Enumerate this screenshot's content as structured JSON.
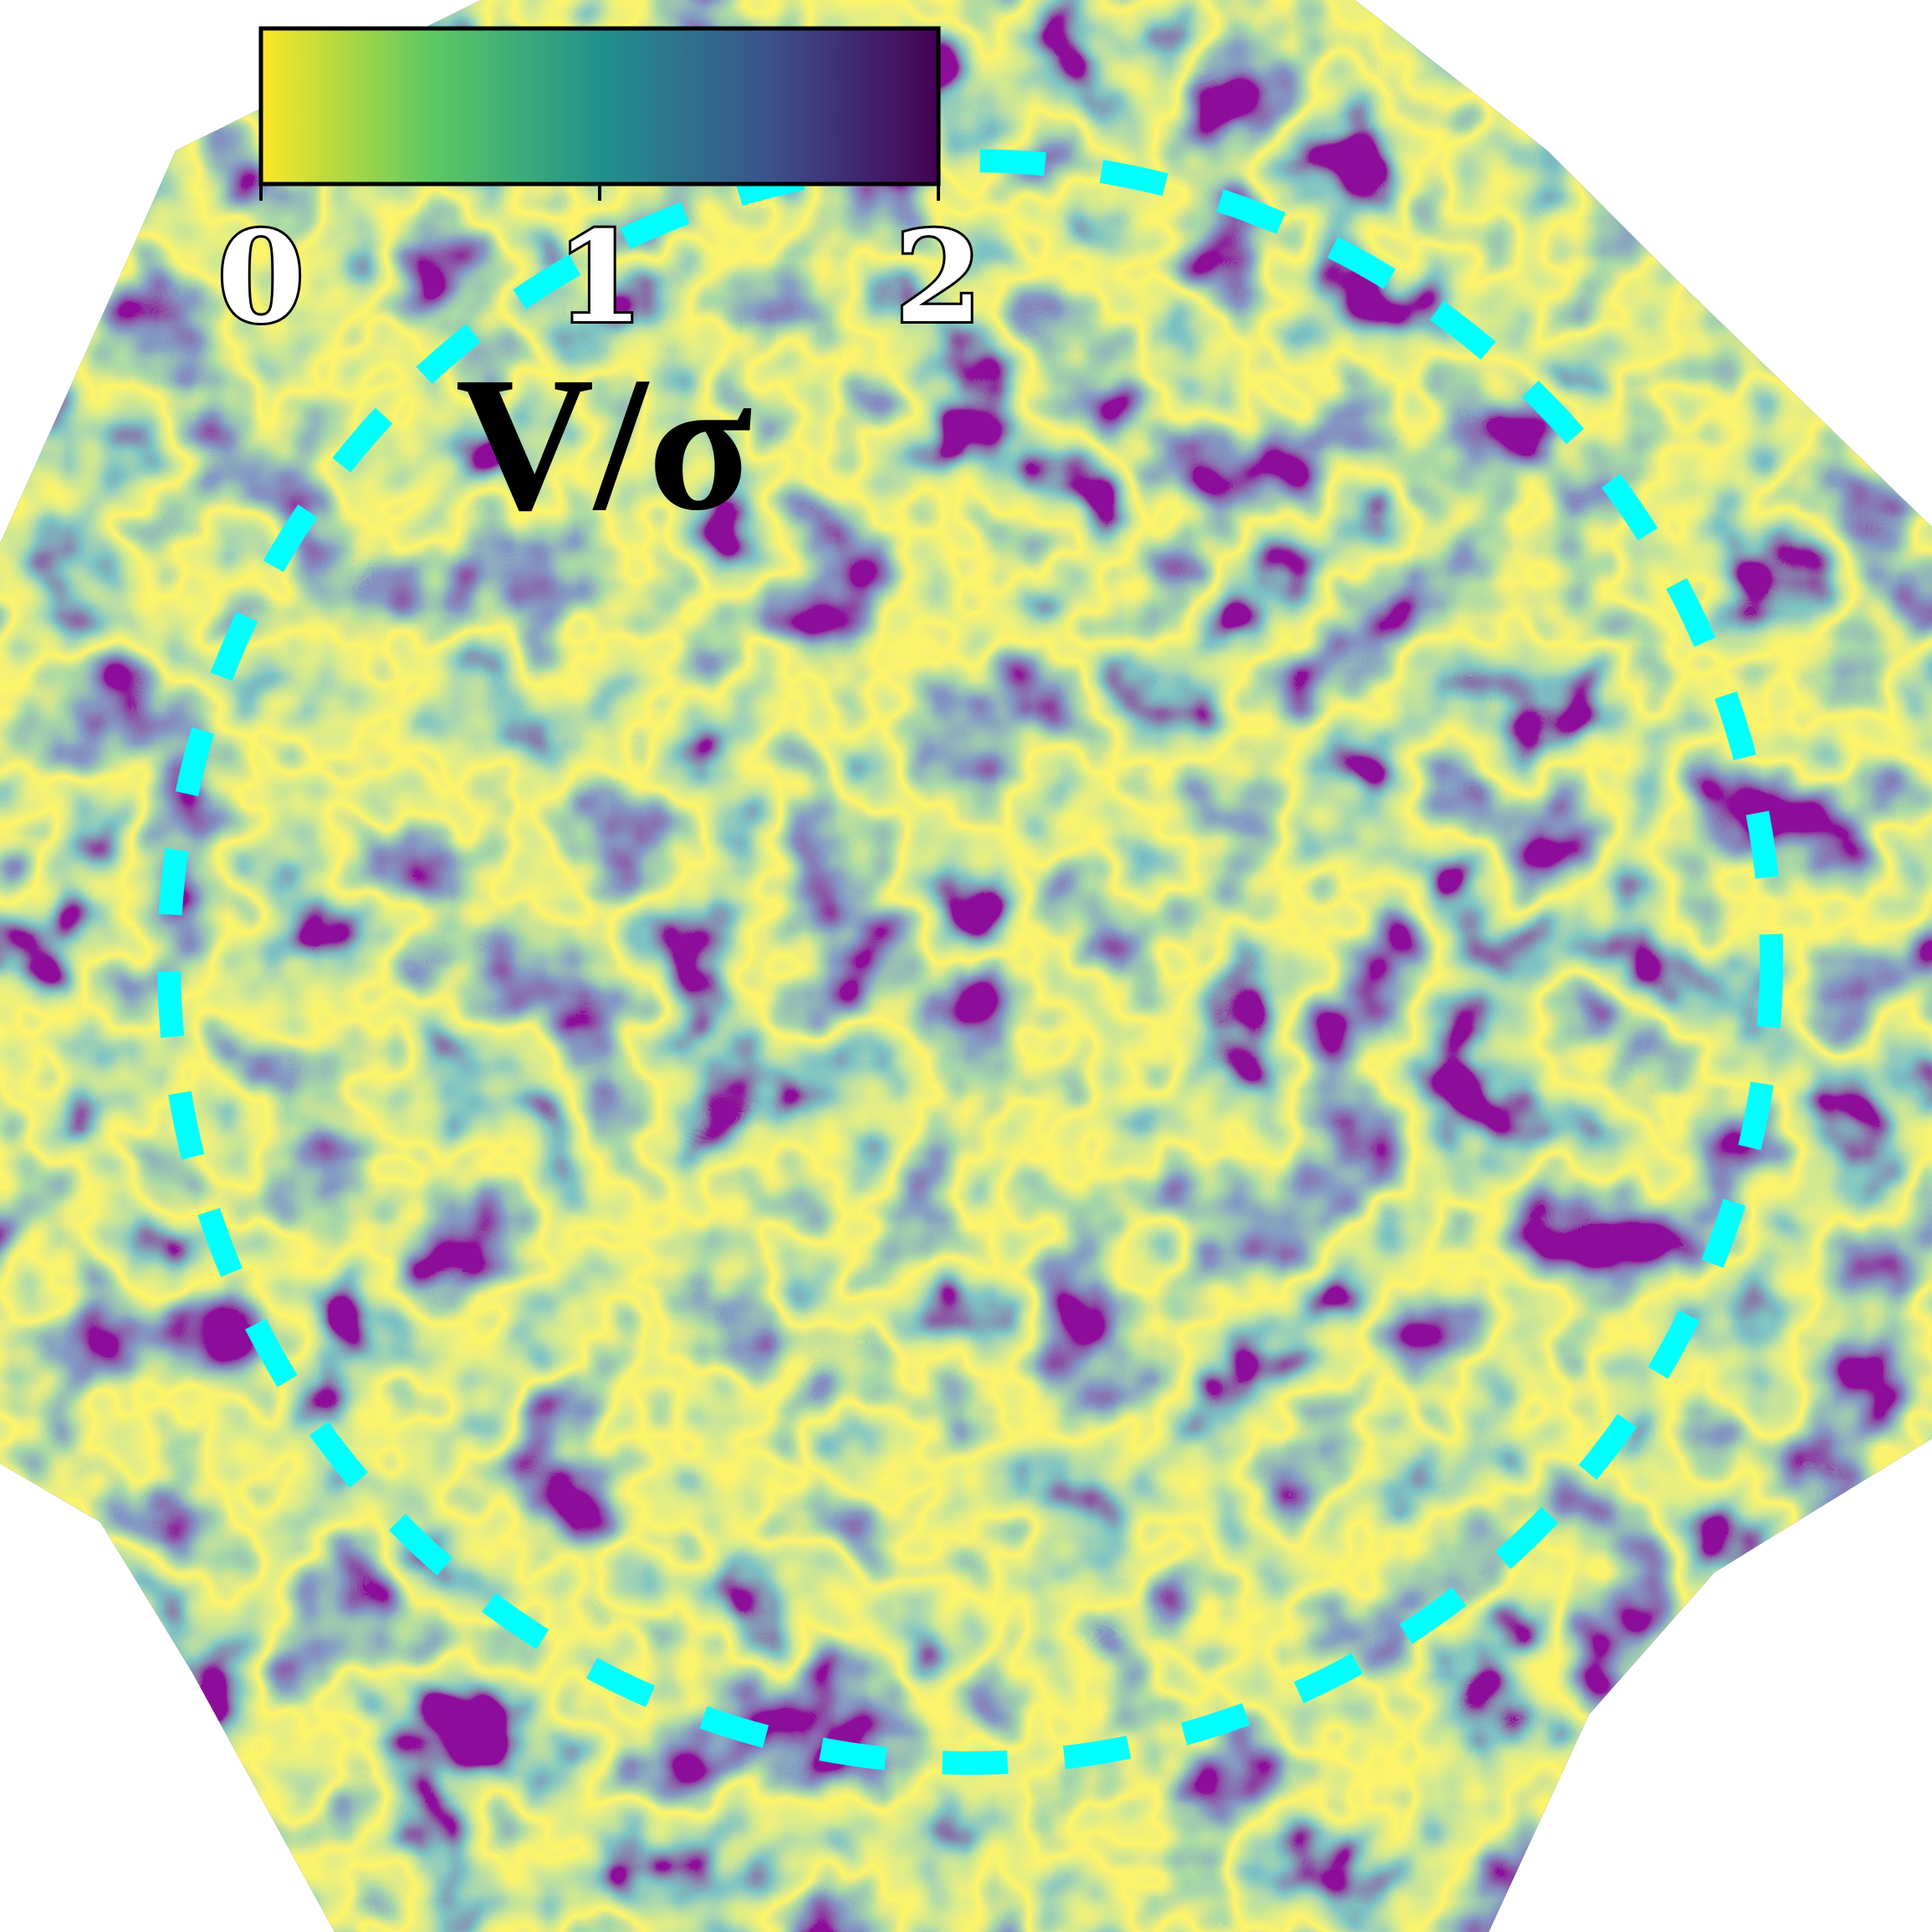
{
  "chart_data": {
    "type": "heatmap",
    "colorbar": {
      "label": "V/σ",
      "lim": [
        0,
        2
      ],
      "ticks": [
        0,
        1,
        2
      ],
      "colors": [
        "#fde725",
        "#5ec962",
        "#21918c",
        "#3b528b",
        "#440154"
      ]
    }
  }
}
